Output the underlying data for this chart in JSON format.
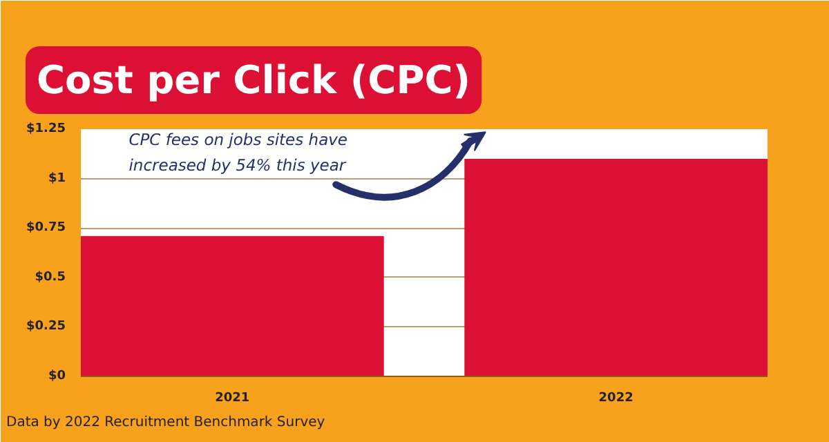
{
  "chart_data": {
    "type": "bar",
    "title": "Cost per Click (CPC)",
    "categories": [
      "2021",
      "2022"
    ],
    "values": [
      0.71,
      1.1
    ],
    "color": "#dc1034",
    "ylim": [
      0,
      1.25
    ],
    "yticks": [
      {
        "value": 0,
        "label": "$0"
      },
      {
        "value": 0.25,
        "label": "$0.25"
      },
      {
        "value": 0.5,
        "label": "$0.5"
      },
      {
        "value": 0.75,
        "label": "$0.75"
      },
      {
        "value": 1,
        "label": "$1"
      },
      {
        "value": 1.25,
        "label": "$1.25"
      }
    ],
    "grid": "y",
    "annotations": [
      "CPC fees on jobs sites have\nincreased by 54% this year",
      "Data by 2022 Recruitment Benchmark Survey"
    ]
  }
}
